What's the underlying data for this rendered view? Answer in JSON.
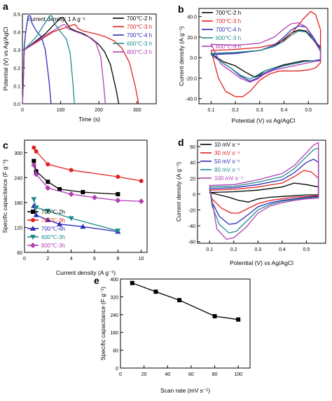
{
  "chart_data": [
    {
      "panel": "a",
      "type": "line",
      "xlabel": "Time (s)",
      "ylabel": "Potential (V) vs Ag/AgCl",
      "xlim": [
        0,
        350
      ],
      "ylim": [
        0,
        0.5
      ],
      "xticks": [
        0,
        100,
        200,
        300
      ],
      "yticks": [
        0.0,
        0.1,
        0.2,
        0.3,
        0.4,
        0.5
      ],
      "annotation": "current density: 1 A g⁻¹",
      "legend_position": "top-right",
      "series": [
        {
          "name": "700℃-2 h",
          "color": "#000000",
          "x": [
            0,
            2,
            5,
            60,
            100,
            104,
            107,
            112,
            125,
            140,
            160,
            180,
            200,
            215,
            230,
            245,
            252
          ],
          "y": [
            0.0,
            0.1,
            0.3,
            0.39,
            0.48,
            0.48,
            0.48,
            0.46,
            0.42,
            0.405,
            0.39,
            0.365,
            0.33,
            0.29,
            0.22,
            0.08,
            0.0
          ]
        },
        {
          "name": "700℃-3 h",
          "color": "#e02020",
          "x": [
            0,
            2,
            5,
            80,
            133,
            136,
            139,
            145,
            160,
            180,
            200,
            220,
            240,
            260,
            280,
            295,
            304
          ],
          "y": [
            0.0,
            0.1,
            0.3,
            0.4,
            0.44,
            0.44,
            0.44,
            0.42,
            0.405,
            0.395,
            0.385,
            0.37,
            0.35,
            0.31,
            0.23,
            0.1,
            0.0
          ]
        },
        {
          "name": "700℃-4 h",
          "color": "#2b2bb8",
          "x": [
            0,
            2,
            4,
            8,
            15,
            18,
            21,
            25,
            35,
            50,
            60,
            70,
            75
          ],
          "y": [
            0.0,
            0.1,
            0.3,
            0.39,
            0.49,
            0.49,
            0.49,
            0.45,
            0.41,
            0.37,
            0.3,
            0.12,
            0.0
          ]
        },
        {
          "name": "600℃-3 h",
          "color": "#1f8c8c",
          "x": [
            0,
            2,
            4,
            35,
            71,
            74,
            77,
            83,
            100,
            115,
            125,
            132,
            136
          ],
          "y": [
            0.0,
            0.1,
            0.3,
            0.37,
            0.49,
            0.49,
            0.49,
            0.45,
            0.4,
            0.36,
            0.28,
            0.12,
            0.0
          ]
        },
        {
          "name": "800℃-3 h",
          "color": "#b23fb2",
          "x": [
            0,
            2,
            5,
            60,
            106,
            109,
            112,
            118,
            135,
            155,
            175,
            192,
            205,
            213,
            217
          ],
          "y": [
            0.0,
            0.1,
            0.3,
            0.38,
            0.44,
            0.44,
            0.44,
            0.42,
            0.405,
            0.39,
            0.37,
            0.34,
            0.26,
            0.1,
            0.0
          ]
        }
      ]
    },
    {
      "panel": "b",
      "type": "line",
      "xlabel": "Potential (V) vs Ag/AgCl",
      "ylabel": "Current density (A g⁻¹)",
      "xlim": [
        0.05,
        0.58
      ],
      "ylim": [
        -45,
        48
      ],
      "xticks": [
        0.1,
        0.2,
        0.3,
        0.4,
        0.5
      ],
      "yticks": [
        -40,
        -20,
        0,
        20,
        40
      ],
      "legend_position": "top-left",
      "series": [
        {
          "name": "700℃-2 h",
          "color": "#000000",
          "x": [
            0.1,
            0.2,
            0.3,
            0.36,
            0.4,
            0.43,
            0.46,
            0.49,
            0.52,
            0.55,
            0.55,
            0.52,
            0.48,
            0.44,
            0.4,
            0.36,
            0.32,
            0.3,
            0.28,
            0.24,
            0.2,
            0.15,
            0.1
          ],
          "y": [
            4,
            5,
            7,
            11,
            18,
            24,
            27,
            26,
            18,
            10,
            -3,
            -3,
            -3,
            -5,
            -7,
            -10,
            -13,
            -17,
            -19,
            -14,
            -8,
            -4,
            4
          ]
        },
        {
          "name": "700℃-3 h",
          "color": "#e02020",
          "x": [
            0.1,
            0.2,
            0.3,
            0.36,
            0.4,
            0.44,
            0.48,
            0.51,
            0.53,
            0.55,
            0.55,
            0.53,
            0.5,
            0.46,
            0.42,
            0.38,
            0.34,
            0.3,
            0.26,
            0.23,
            0.2,
            0.16,
            0.13,
            0.1
          ],
          "y": [
            7,
            8,
            10,
            13,
            17,
            26,
            38,
            45,
            42,
            27,
            -5,
            -10,
            -12,
            -13,
            -13,
            -13,
            -16,
            -22,
            -33,
            -38,
            -38,
            -33,
            -20,
            7
          ]
        },
        {
          "name": "700℃-4 h",
          "color": "#2b2bb8",
          "x": [
            0.1,
            0.2,
            0.3,
            0.36,
            0.4,
            0.43,
            0.46,
            0.49,
            0.52,
            0.55,
            0.55,
            0.52,
            0.48,
            0.44,
            0.4,
            0.36,
            0.32,
            0.29,
            0.26,
            0.22,
            0.18,
            0.14,
            0.1
          ],
          "y": [
            3,
            4,
            7,
            12,
            20,
            27,
            31,
            30,
            20,
            8,
            -2,
            -3,
            -4,
            -6,
            -8,
            -11,
            -15,
            -20,
            -23,
            -18,
            -10,
            -4,
            3
          ]
        },
        {
          "name": "600℃-3 h",
          "color": "#1f8c8c",
          "x": [
            0.1,
            0.2,
            0.3,
            0.36,
            0.4,
            0.43,
            0.46,
            0.49,
            0.52,
            0.55,
            0.55,
            0.52,
            0.48,
            0.44,
            0.4,
            0.36,
            0.32,
            0.29,
            0.26,
            0.22,
            0.18,
            0.14,
            0.1
          ],
          "y": [
            4,
            5,
            7,
            11,
            16,
            22,
            26,
            25,
            17,
            8,
            -3,
            -3,
            -4,
            -6,
            -8,
            -10,
            -13,
            -17,
            -21,
            -17,
            -10,
            -4,
            4
          ]
        },
        {
          "name": "800℃-3 h",
          "color": "#b23fb2",
          "x": [
            0.1,
            0.2,
            0.3,
            0.36,
            0.4,
            0.43,
            0.46,
            0.49,
            0.52,
            0.55,
            0.55,
            0.52,
            0.48,
            0.44,
            0.4,
            0.36,
            0.32,
            0.29,
            0.26,
            0.22,
            0.18,
            0.14,
            0.1
          ],
          "y": [
            13,
            12,
            14,
            20,
            28,
            33,
            34,
            30,
            18,
            6,
            -3,
            -4,
            -6,
            -8,
            -10,
            -12,
            -16,
            -21,
            -24,
            -20,
            -13,
            -6,
            13
          ]
        }
      ]
    },
    {
      "panel": "c",
      "type": "line",
      "xlabel": "Current density (A g⁻¹)",
      "ylabel": "Specific capacitance (F g⁻¹)",
      "xlim": [
        0,
        10.5
      ],
      "ylim": [
        60,
        330
      ],
      "xticks": [
        0,
        2,
        4,
        6,
        8,
        10
      ],
      "yticks": [
        60,
        120,
        180,
        240,
        300
      ],
      "legend_position": "bottom-left",
      "series": [
        {
          "name": "700℃-2h",
          "color": "#000000",
          "marker": "square",
          "x": [
            0.8,
            1,
            2,
            3,
            5,
            8
          ],
          "y": [
            280,
            255,
            230,
            212,
            205,
            200
          ]
        },
        {
          "name": "700℃-3h",
          "color": "#e02020",
          "marker": "circle",
          "x": [
            0.8,
            1,
            2,
            4,
            8,
            10
          ],
          "y": [
            312,
            303,
            272,
            258,
            242,
            232
          ]
        },
        {
          "name": "700℃-4h",
          "color": "#2b2bb8",
          "marker": "triangle-up",
          "x": [
            0.8,
            1,
            2,
            3,
            5,
            8
          ],
          "y": [
            172,
            150,
            138,
            128,
            122,
            110
          ]
        },
        {
          "name": "600℃-3h",
          "color": "#1f8c8c",
          "marker": "triangle-down",
          "x": [
            0.8,
            1,
            2,
            4,
            8
          ],
          "y": [
            188,
            168,
            160,
            142,
            112
          ]
        },
        {
          "name": "800℃-3h",
          "color": "#b23fb2",
          "marker": "diamond",
          "x": [
            0.8,
            1,
            2,
            4,
            6,
            8,
            10
          ],
          "y": [
            270,
            248,
            215,
            200,
            192,
            185,
            183
          ]
        }
      ]
    },
    {
      "panel": "d",
      "type": "line",
      "xlabel": "Potential (V) vs Ag/AgCl",
      "ylabel": "Current density (A g⁻¹)",
      "xlim": [
        0.05,
        0.58
      ],
      "ylim": [
        -62,
        68
      ],
      "xticks": [
        0.1,
        0.2,
        0.3,
        0.4,
        0.5
      ],
      "yticks": [
        -60,
        -40,
        -20,
        0,
        20,
        40,
        60
      ],
      "legend_position": "top-left",
      "series": [
        {
          "name": "10 mV s⁻¹",
          "color": "#000000",
          "x": [
            0.1,
            0.2,
            0.3,
            0.4,
            0.45,
            0.5,
            0.55,
            0.55,
            0.5,
            0.45,
            0.4,
            0.35,
            0.3,
            0.26,
            0.22,
            0.18,
            0.14,
            0.1
          ],
          "y": [
            2,
            3,
            5,
            9,
            14,
            12,
            9,
            -1,
            -1,
            -2,
            -3,
            -4,
            -6,
            -10,
            -8,
            -4,
            -1,
            2
          ]
        },
        {
          "name": "30 mV s⁻¹",
          "color": "#e02020",
          "x": [
            0.1,
            0.2,
            0.3,
            0.4,
            0.45,
            0.49,
            0.52,
            0.55,
            0.55,
            0.5,
            0.45,
            0.4,
            0.35,
            0.3,
            0.26,
            0.22,
            0.19,
            0.15,
            0.11,
            0.1
          ],
          "y": [
            5,
            6,
            9,
            14,
            22,
            30,
            28,
            20,
            -2,
            -3,
            -4,
            -6,
            -8,
            -12,
            -18,
            -24,
            -24,
            -18,
            -6,
            5
          ]
        },
        {
          "name": "50 mV s⁻¹",
          "color": "#2b2bb8",
          "x": [
            0.1,
            0.2,
            0.3,
            0.4,
            0.45,
            0.5,
            0.53,
            0.55,
            0.55,
            0.5,
            0.45,
            0.4,
            0.35,
            0.3,
            0.25,
            0.21,
            0.18,
            0.14,
            0.11,
            0.1
          ],
          "y": [
            7,
            8,
            12,
            18,
            27,
            40,
            44,
            40,
            -3,
            -4,
            -6,
            -8,
            -11,
            -16,
            -28,
            -37,
            -38,
            -28,
            -10,
            7
          ]
        },
        {
          "name": "80 mV s⁻¹",
          "color": "#1f8c8c",
          "x": [
            0.1,
            0.2,
            0.3,
            0.4,
            0.45,
            0.5,
            0.53,
            0.55,
            0.55,
            0.5,
            0.45,
            0.4,
            0.35,
            0.3,
            0.25,
            0.21,
            0.18,
            0.14,
            0.11,
            0.1
          ],
          "y": [
            9,
            10,
            15,
            22,
            32,
            47,
            56,
            58,
            -4,
            -5,
            -7,
            -9,
            -13,
            -20,
            -35,
            -47,
            -49,
            -38,
            -15,
            9
          ]
        },
        {
          "name": "100 mV s⁻¹",
          "color": "#b23fb2",
          "x": [
            0.1,
            0.2,
            0.3,
            0.4,
            0.45,
            0.5,
            0.53,
            0.55,
            0.55,
            0.5,
            0.45,
            0.4,
            0.35,
            0.3,
            0.25,
            0.2,
            0.17,
            0.13,
            0.1
          ],
          "y": [
            11,
            12,
            18,
            26,
            36,
            52,
            62,
            65,
            -5,
            -6,
            -8,
            -11,
            -15,
            -24,
            -42,
            -55,
            -57,
            -44,
            11
          ]
        }
      ]
    },
    {
      "panel": "e",
      "type": "line",
      "xlabel": "Scan rate (mV s⁻¹)",
      "ylabel": "Specific capacitance (F g⁻¹)",
      "xlim": [
        0,
        110
      ],
      "ylim": [
        0,
        400
      ],
      "xticks": [
        0,
        20,
        40,
        60,
        80,
        100
      ],
      "yticks": [
        0,
        80,
        160,
        240,
        320,
        400
      ],
      "series": [
        {
          "color": "#000000",
          "marker": "square",
          "x": [
            10,
            30,
            50,
            80,
            100
          ],
          "y": [
            382,
            343,
            305,
            233,
            218
          ]
        }
      ]
    }
  ]
}
